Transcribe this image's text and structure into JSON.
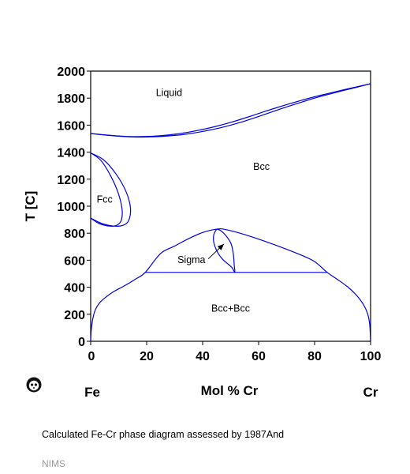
{
  "chart_data": {
    "type": "line",
    "title": "",
    "xlabel": "Mol % Cr",
    "ylabel": "T [C]",
    "xlim": [
      0,
      100
    ],
    "ylim": [
      0,
      2000
    ],
    "x_ticks": [
      0,
      20,
      40,
      60,
      80,
      100
    ],
    "x_tick_labels": [
      "0",
      "20",
      "40",
      "60",
      "80",
      "100"
    ],
    "y_ticks": [
      0,
      200,
      400,
      600,
      800,
      1000,
      1200,
      1400,
      1600,
      1800,
      2000
    ],
    "y_tick_labels": [
      "0",
      "200",
      "400",
      "600",
      "800",
      "1000",
      "1200",
      "1400",
      "1600",
      "1800",
      "2000"
    ],
    "left_element": "Fe",
    "right_element": "Cr",
    "line_color": "#0000dd",
    "grid": false,
    "series": [
      {
        "values": [
          [
            0,
            1538
          ],
          [
            5,
            1528
          ],
          [
            10,
            1520
          ],
          [
            15,
            1515
          ],
          [
            20,
            1516
          ],
          [
            25,
            1522
          ],
          [
            30,
            1533
          ],
          [
            35,
            1548
          ],
          [
            40,
            1568
          ],
          [
            45,
            1592
          ],
          [
            50,
            1620
          ],
          [
            55,
            1652
          ],
          [
            60,
            1686
          ],
          [
            65,
            1720
          ],
          [
            70,
            1752
          ],
          [
            75,
            1782
          ],
          [
            80,
            1810
          ],
          [
            85,
            1835
          ],
          [
            90,
            1860
          ],
          [
            95,
            1883
          ],
          [
            100,
            1907
          ]
        ]
      },
      {
        "values": [
          [
            0,
            1538
          ],
          [
            5,
            1527
          ],
          [
            10,
            1518
          ],
          [
            15,
            1512
          ],
          [
            20,
            1512
          ],
          [
            25,
            1516
          ],
          [
            30,
            1524
          ],
          [
            35,
            1536
          ],
          [
            40,
            1553
          ],
          [
            45,
            1574
          ],
          [
            50,
            1600
          ],
          [
            55,
            1630
          ],
          [
            60,
            1664
          ],
          [
            65,
            1700
          ],
          [
            70,
            1735
          ],
          [
            75,
            1768
          ],
          [
            80,
            1800
          ],
          [
            85,
            1828
          ],
          [
            90,
            1855
          ],
          [
            95,
            1880
          ],
          [
            100,
            1907
          ]
        ]
      },
      {
        "values": [
          [
            0,
            1394
          ],
          [
            3.6,
            1340
          ],
          [
            7,
            1230
          ],
          [
            9.8,
            1100
          ],
          [
            11.2,
            980
          ],
          [
            11,
            900
          ],
          [
            9.6,
            862
          ],
          [
            7,
            852
          ],
          [
            3,
            872
          ],
          [
            0,
            912
          ]
        ]
      },
      {
        "values": [
          [
            0,
            1394
          ],
          [
            4.5,
            1345
          ],
          [
            9,
            1240
          ],
          [
            12.6,
            1110
          ],
          [
            14.2,
            990
          ],
          [
            13.7,
            900
          ],
          [
            12,
            862
          ],
          [
            8.8,
            852
          ],
          [
            4,
            872
          ],
          [
            0,
            912
          ]
        ]
      },
      {
        "values": [
          [
            0,
            0
          ],
          [
            0.2,
            80
          ],
          [
            0.7,
            160
          ],
          [
            1.6,
            230
          ],
          [
            3,
            280
          ],
          [
            5,
            320
          ],
          [
            8,
            365
          ],
          [
            12,
            410
          ],
          [
            16,
            460
          ],
          [
            19.5,
            510
          ],
          [
            25,
            650
          ],
          [
            30,
            705
          ],
          [
            35,
            760
          ],
          [
            40,
            805
          ],
          [
            45,
            830
          ],
          [
            48,
            828
          ],
          [
            55,
            790
          ],
          [
            65,
            720
          ],
          [
            75,
            640
          ],
          [
            80,
            590
          ],
          [
            84.5,
            510
          ],
          [
            88,
            460
          ],
          [
            92,
            400
          ],
          [
            95,
            340
          ],
          [
            97.5,
            270
          ],
          [
            99,
            200
          ],
          [
            99.7,
            120
          ],
          [
            100,
            0
          ]
        ]
      },
      {
        "values": [
          [
            19.5,
            510
          ],
          [
            84.5,
            510
          ]
        ]
      },
      {
        "values": [
          [
            45,
            830
          ],
          [
            44,
            790
          ],
          [
            44,
            730
          ],
          [
            45.3,
            660
          ],
          [
            47,
            610
          ],
          [
            48.6,
            580
          ],
          [
            50.5,
            545
          ],
          [
            51.5,
            510
          ],
          [
            51.3,
            560
          ],
          [
            51,
            640
          ],
          [
            50.2,
            720
          ],
          [
            48.4,
            780
          ],
          [
            46.4,
            820
          ],
          [
            45,
            830
          ]
        ]
      }
    ],
    "annotations": [
      {
        "text": "Liquid",
        "x": 28,
        "y": 1815
      },
      {
        "text": "Bcc",
        "x": 61,
        "y": 1270
      },
      {
        "text": "Fcc",
        "x": 5,
        "y": 1025
      },
      {
        "text": "Sigma",
        "x": 36,
        "y": 578
      },
      {
        "text": "Bcc+Bcc",
        "x": 50,
        "y": 220
      }
    ],
    "arrow": {
      "from": [
        42,
        610
      ],
      "to": [
        47.6,
        720
      ]
    }
  },
  "caption": "Calculated Fe-Cr phase diagram assessed by 1987And",
  "source": "NIMS",
  "logo_icon": "nims-panda-logo-icon"
}
